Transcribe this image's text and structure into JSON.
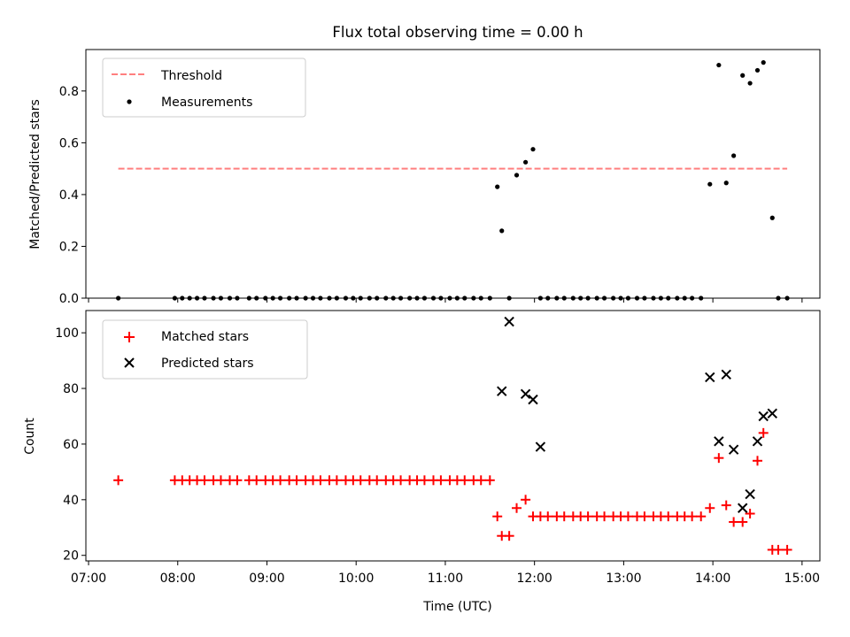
{
  "chart_data": [
    {
      "type": "line+scatter",
      "title": "Flux total observing time = 0.00 h",
      "ylabel": "Matched/Predicted stars",
      "ylim": [
        0,
        0.96
      ],
      "yticks": [
        0.0,
        0.2,
        0.4,
        0.6,
        0.8
      ],
      "ytick_labels": [
        "0.0",
        "0.2",
        "0.4",
        "0.6",
        "0.8"
      ],
      "xlim_hours": [
        6.97,
        15.2
      ],
      "legend": {
        "placement": "upper-left",
        "entries": [
          "Threshold",
          "Measurements"
        ]
      },
      "threshold": {
        "name": "Threshold",
        "value": 0.5,
        "x_range": [
          "07:20",
          "14:50"
        ],
        "style": "dashed",
        "color": "#ff7f7f"
      },
      "series": [
        {
          "name": "Measurements",
          "color": "#000000",
          "x": [
            "07:20",
            "07:58",
            "08:03",
            "08:08",
            "08:13",
            "08:18",
            "08:24",
            "08:29",
            "08:35",
            "08:40",
            "08:48",
            "08:53",
            "08:59",
            "09:04",
            "09:09",
            "09:15",
            "09:20",
            "09:26",
            "09:31",
            "09:36",
            "09:42",
            "09:47",
            "09:53",
            "09:58",
            "10:03",
            "10:09",
            "10:14",
            "10:20",
            "10:25",
            "10:30",
            "10:36",
            "10:41",
            "10:46",
            "10:52",
            "10:57",
            "11:03",
            "11:08",
            "11:13",
            "11:19",
            "11:24",
            "11:30",
            "11:35",
            "11:38",
            "11:43",
            "11:48",
            "11:54",
            "11:59",
            "12:04",
            "12:09",
            "12:15",
            "12:20",
            "12:26",
            "12:31",
            "12:36",
            "12:42",
            "12:47",
            "12:53",
            "12:58",
            "13:03",
            "13:09",
            "13:14",
            "13:20",
            "13:25",
            "13:30",
            "13:36",
            "13:41",
            "13:46",
            "13:52",
            "13:58",
            "14:04",
            "14:09",
            "14:14",
            "14:20",
            "14:25",
            "14:30",
            "14:34",
            "14:40",
            "14:44",
            "14:50"
          ],
          "y": [
            0,
            0,
            0,
            0,
            0,
            0,
            0,
            0,
            0,
            0,
            0,
            0,
            0,
            0,
            0,
            0,
            0,
            0,
            0,
            0,
            0,
            0,
            0,
            0,
            0,
            0,
            0,
            0,
            0,
            0,
            0,
            0,
            0,
            0,
            0,
            0,
            0,
            0,
            0,
            0,
            0,
            0.43,
            0.26,
            0,
            0.475,
            0.525,
            0.575,
            0,
            0,
            0,
            0,
            0,
            0,
            0,
            0,
            0,
            0,
            0,
            0,
            0,
            0,
            0,
            0,
            0,
            0,
            0,
            0,
            0,
            0.44,
            0.9,
            0.445,
            0.55,
            0.86,
            0.83,
            0.88,
            0.91,
            0.31,
            0,
            0
          ]
        }
      ]
    },
    {
      "type": "scatter",
      "title": "",
      "xlabel": "Time (UTC)",
      "ylabel": "Count",
      "ylim": [
        18,
        108
      ],
      "yticks": [
        20,
        40,
        60,
        80,
        100
      ],
      "ytick_labels": [
        "20",
        "40",
        "60",
        "80",
        "100"
      ],
      "xlim_hours": [
        6.97,
        15.2
      ],
      "xticks": [
        "07:00",
        "08:00",
        "09:00",
        "10:00",
        "11:00",
        "12:00",
        "13:00",
        "14:00",
        "15:00"
      ],
      "legend": {
        "placement": "upper-left",
        "entries": [
          "Matched stars",
          "Predicted stars"
        ]
      },
      "series": [
        {
          "name": "Matched stars",
          "marker": "+",
          "color": "#ff0000",
          "x": [
            "07:20",
            "07:58",
            "08:03",
            "08:08",
            "08:13",
            "08:18",
            "08:24",
            "08:29",
            "08:35",
            "08:40",
            "08:48",
            "08:53",
            "08:59",
            "09:04",
            "09:09",
            "09:15",
            "09:20",
            "09:26",
            "09:31",
            "09:36",
            "09:42",
            "09:47",
            "09:53",
            "09:58",
            "10:03",
            "10:09",
            "10:14",
            "10:20",
            "10:25",
            "10:30",
            "10:36",
            "10:41",
            "10:46",
            "10:52",
            "10:57",
            "11:03",
            "11:08",
            "11:13",
            "11:19",
            "11:24",
            "11:30",
            "11:35",
            "11:38",
            "11:43",
            "11:48",
            "11:54",
            "11:59",
            "12:04",
            "12:09",
            "12:15",
            "12:20",
            "12:26",
            "12:31",
            "12:36",
            "12:42",
            "12:47",
            "12:53",
            "12:58",
            "13:03",
            "13:09",
            "13:14",
            "13:20",
            "13:25",
            "13:30",
            "13:36",
            "13:41",
            "13:46",
            "13:52",
            "13:58",
            "14:04",
            "14:09",
            "14:14",
            "14:20",
            "14:25",
            "14:30",
            "14:34",
            "14:40",
            "14:44",
            "14:50"
          ],
          "y": [
            47,
            47,
            47,
            47,
            47,
            47,
            47,
            47,
            47,
            47,
            47,
            47,
            47,
            47,
            47,
            47,
            47,
            47,
            47,
            47,
            47,
            47,
            47,
            47,
            47,
            47,
            47,
            47,
            47,
            47,
            47,
            47,
            47,
            47,
            47,
            47,
            47,
            47,
            47,
            47,
            47,
            34,
            27,
            27,
            37,
            40,
            34,
            34,
            34,
            34,
            34,
            34,
            34,
            34,
            34,
            34,
            34,
            34,
            34,
            34,
            34,
            34,
            34,
            34,
            34,
            34,
            34,
            34,
            37,
            55,
            38,
            32,
            32,
            35,
            54,
            64,
            22,
            22,
            22
          ]
        },
        {
          "name": "Predicted stars",
          "marker": "x",
          "color": "#000000",
          "x": [
            "11:38",
            "11:43",
            "11:54",
            "11:59",
            "12:04",
            "13:58",
            "14:04",
            "14:09",
            "14:14",
            "14:20",
            "14:25",
            "14:30",
            "14:34",
            "14:40"
          ],
          "y": [
            79,
            104,
            78,
            76,
            59,
            84,
            61,
            85,
            58,
            37,
            42,
            61,
            70,
            71
          ]
        }
      ]
    }
  ]
}
